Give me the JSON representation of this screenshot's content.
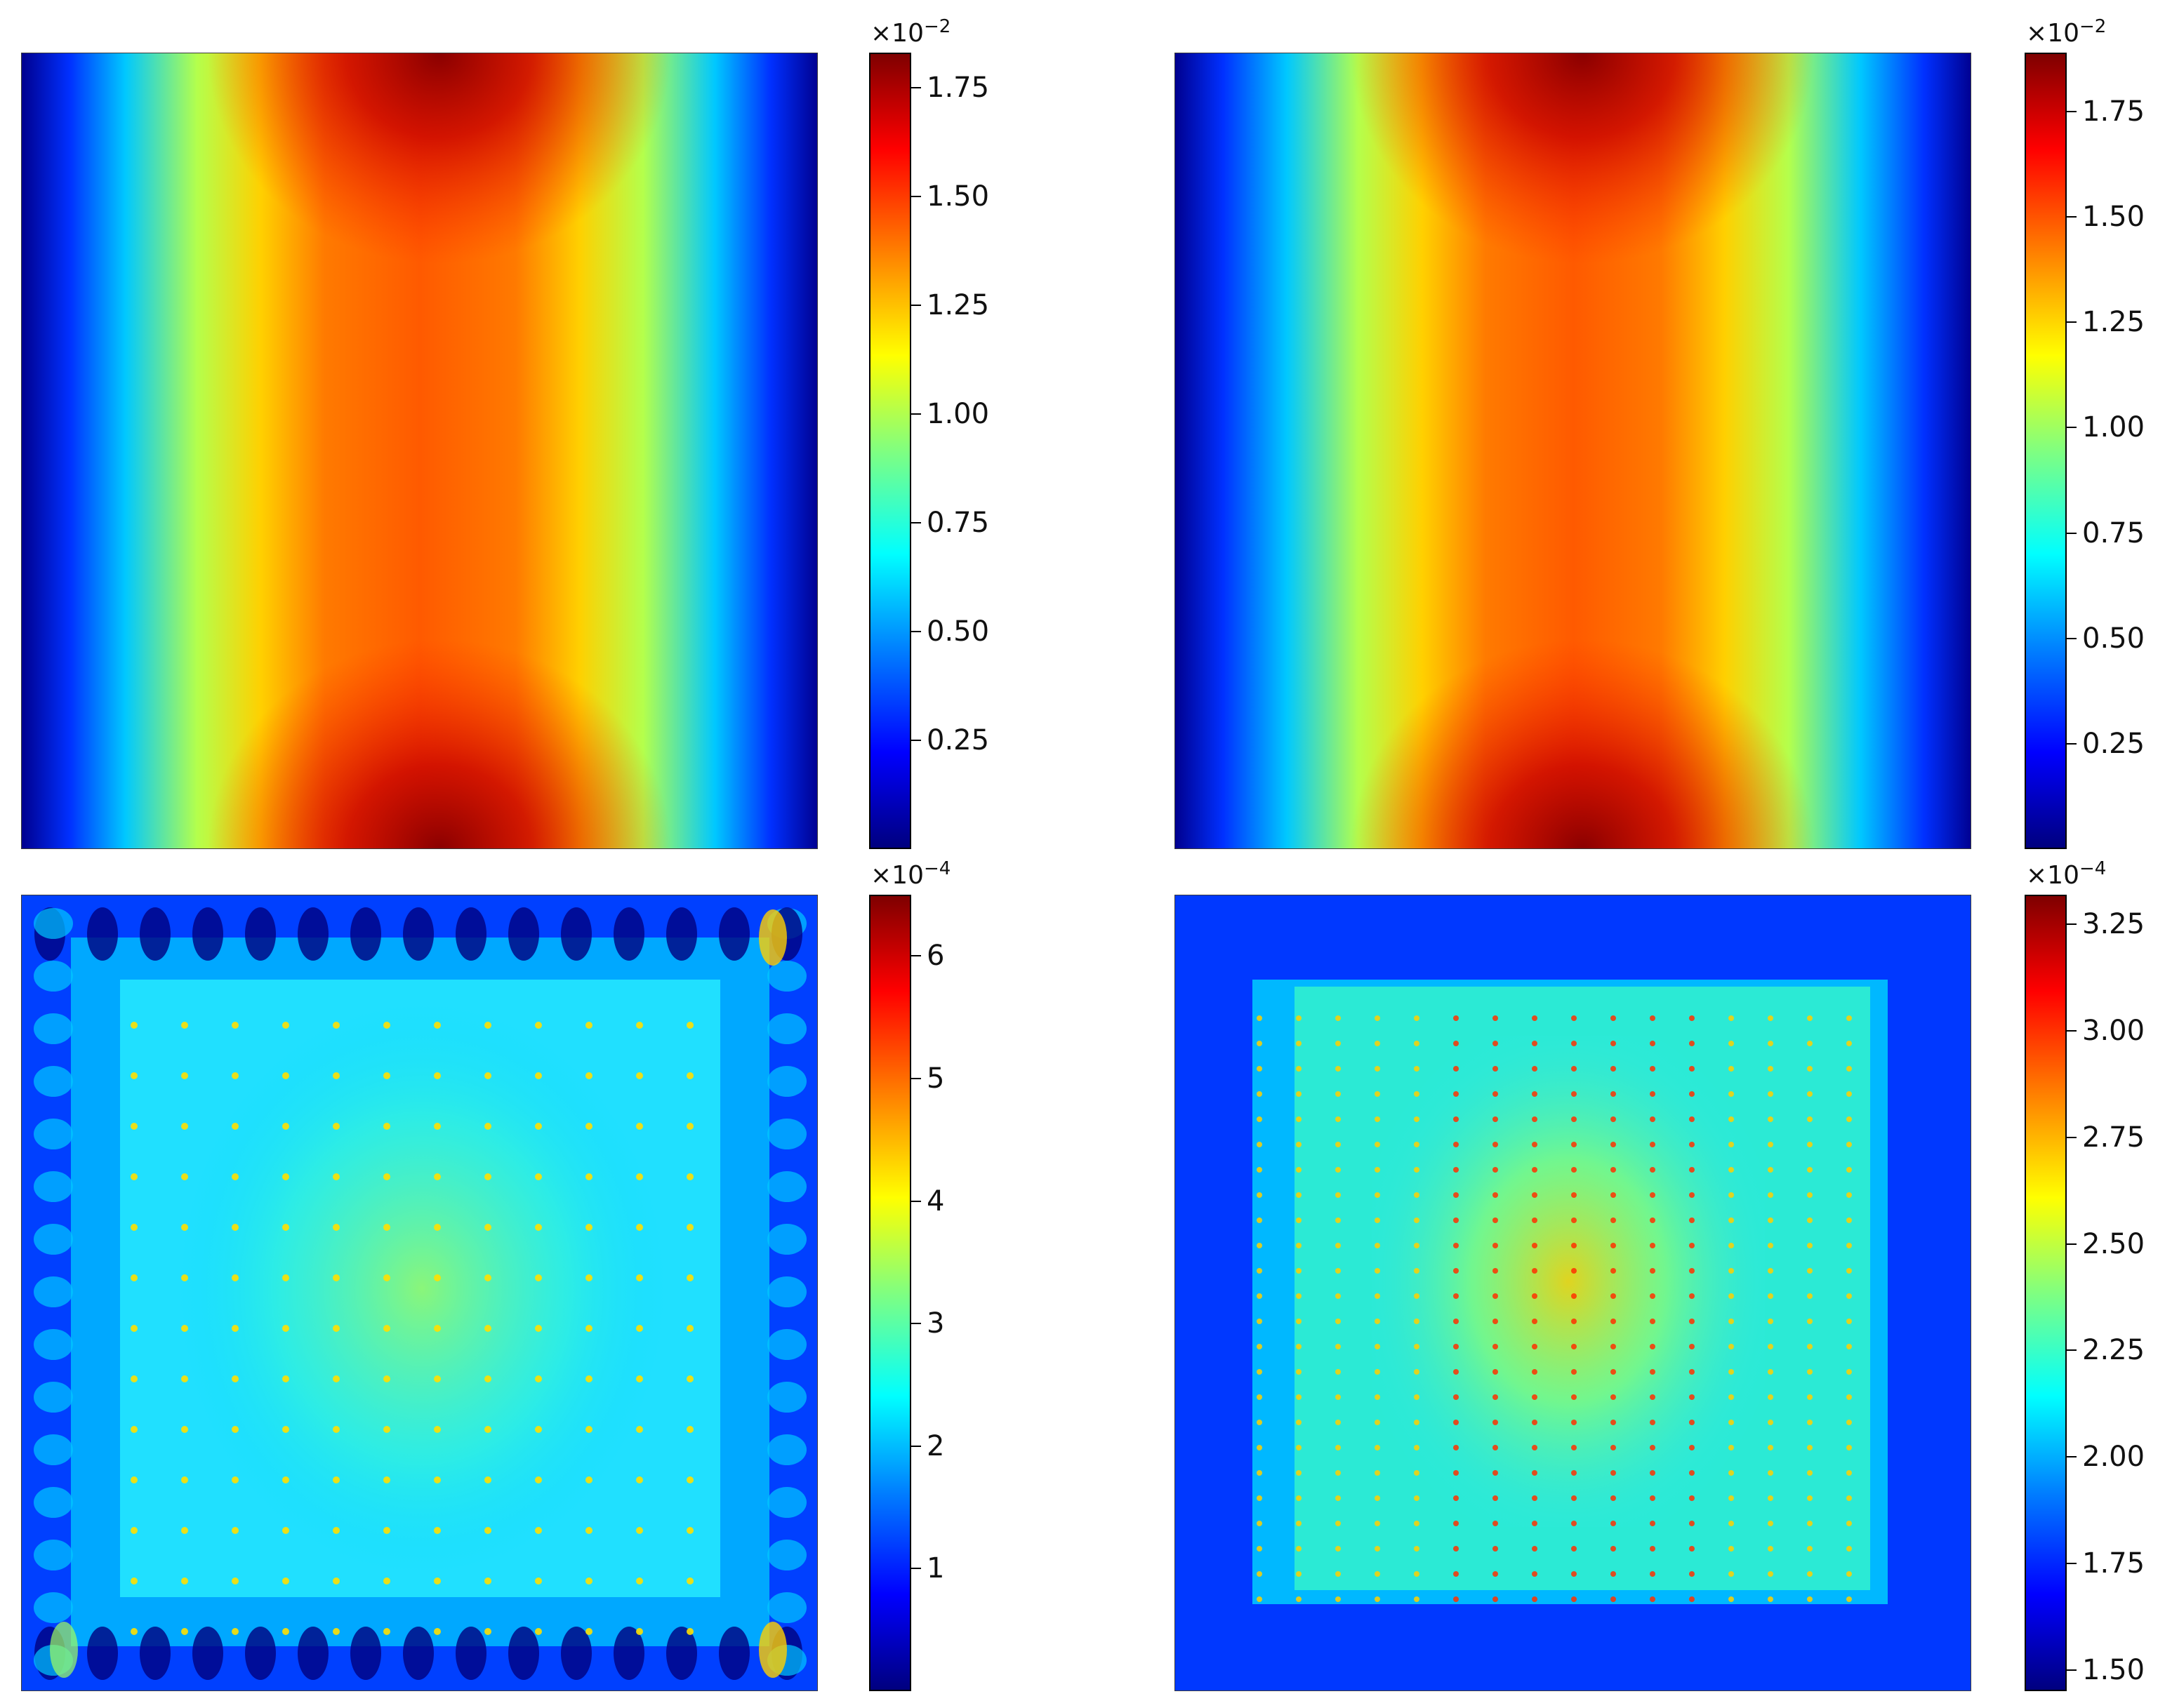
{
  "chart_data": [
    {
      "type": "heatmap",
      "title": "",
      "colormap": "jet",
      "colorbar": {
        "multiplier": "×10",
        "exponent": "−2",
        "range": [
          0.0,
          1.83
        ],
        "ticks": [
          "0.25",
          "0.50",
          "0.75",
          "1.00",
          "1.25",
          "1.50",
          "1.75"
        ]
      },
      "pattern": "vertical band, maximum near top and bottom center, low at left and right edges"
    },
    {
      "type": "heatmap",
      "title": "",
      "colormap": "jet",
      "colorbar": {
        "multiplier": "×10",
        "exponent": "−2",
        "range": [
          0.0,
          1.89
        ],
        "ticks": [
          "0.25",
          "0.50",
          "0.75",
          "1.00",
          "1.25",
          "1.50",
          "1.75"
        ]
      },
      "pattern": "vertical band, maximum near top and bottom center, low at left and right edges"
    },
    {
      "type": "heatmap",
      "title": "",
      "colormap": "jet",
      "colorbar": {
        "multiplier": "×10",
        "exponent": "−4",
        "range": [
          0.0,
          6.5
        ],
        "ticks": [
          "1",
          "2",
          "3",
          "4",
          "5",
          "6"
        ]
      },
      "pattern": "error field with boundary ring of oscillations and periodic point peaks inside"
    },
    {
      "type": "heatmap",
      "title": "",
      "colormap": "jet",
      "colorbar": {
        "multiplier": "×10",
        "exponent": "−4",
        "range": [
          1.45,
          3.32
        ],
        "ticks": [
          "1.50",
          "1.75",
          "2.00",
          "2.25",
          "2.50",
          "2.75",
          "3.00",
          "3.25"
        ]
      },
      "pattern": "inner square with grid of point peaks over uniform low background"
    }
  ]
}
